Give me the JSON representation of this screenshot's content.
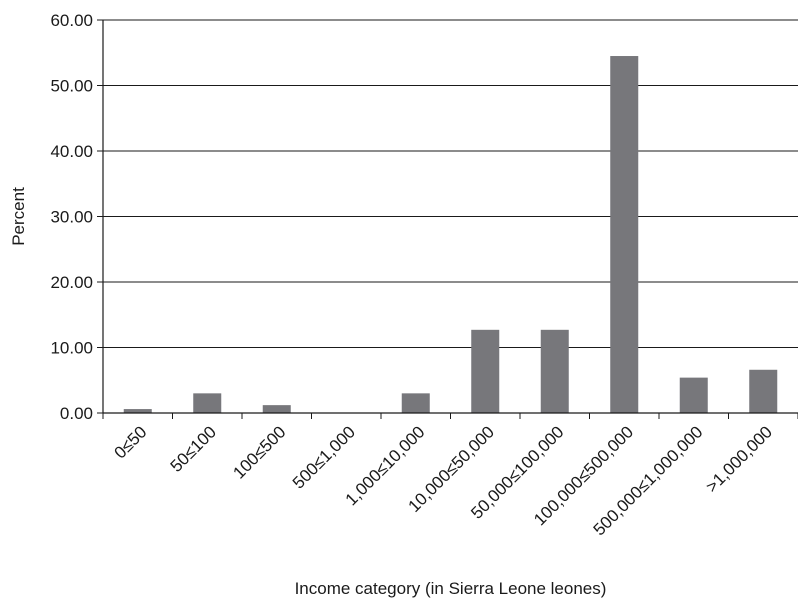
{
  "chart_data": {
    "type": "bar",
    "title": "",
    "xlabel": "Income category (in Sierra Leone leones)",
    "ylabel": "Percent",
    "ylim": [
      0,
      60
    ],
    "yticks": [
      "0.00",
      "10.00",
      "20.00",
      "30.00",
      "40.00",
      "50.00",
      "60.00"
    ],
    "grid": true,
    "categories": [
      "0≤50",
      "50≤100",
      "100≤500",
      "500≤1,000",
      "1,000≤10,000",
      "10,000≤50,000",
      "50,000≤100,000",
      "100,000≤500,000",
      "500,000≤1,000,000",
      ">1,000,000"
    ],
    "values": [
      0.6,
      3.0,
      1.2,
      0.0,
      3.0,
      12.7,
      12.7,
      54.5,
      5.4,
      6.6
    ],
    "bar_color": "#77777b"
  }
}
